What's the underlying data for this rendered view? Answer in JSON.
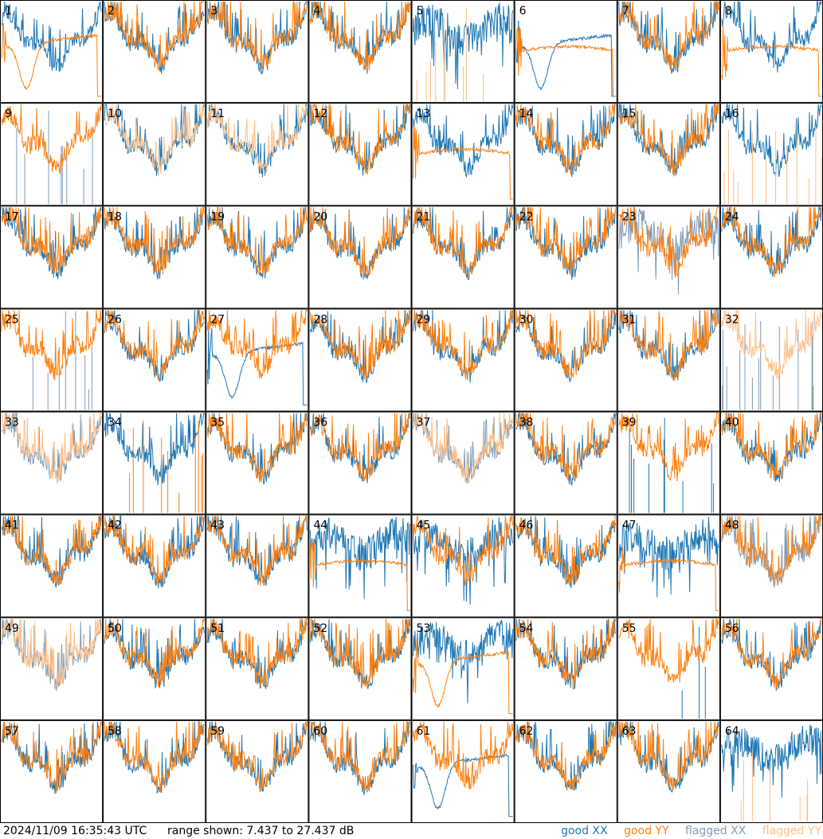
{
  "chart_data": {
    "type": "line",
    "layout": "8x8 small multiples, one panel per antenna",
    "panel_count": 64,
    "colors": {
      "good_xx": "#1f77b4",
      "good_yy": "#ff7f0e",
      "flagged_xx": "#7f9bb8",
      "flagged_yy": "#ffbf87",
      "border": "#000000",
      "background": "#ffffff"
    },
    "y_range_db": [
      7.437,
      27.437
    ],
    "panels": [
      {
        "id": 1,
        "label": "1",
        "xx": "good",
        "yy": "good",
        "xx_shape": "normal",
        "yy_shape": "dip"
      },
      {
        "id": 2,
        "label": "2",
        "xx": "good",
        "yy": "good",
        "xx_shape": "normal",
        "yy_shape": "normal"
      },
      {
        "id": 3,
        "label": "3",
        "xx": "good",
        "yy": "good",
        "xx_shape": "normal",
        "yy_shape": "normal"
      },
      {
        "id": 4,
        "label": "4",
        "xx": "good",
        "yy": "good",
        "xx_shape": "normal",
        "yy_shape": "normal"
      },
      {
        "id": 5,
        "label": "5",
        "xx": "good",
        "yy": "flagged",
        "xx_shape": "noisy",
        "yy_shape": "spikes"
      },
      {
        "id": 6,
        "label": "6",
        "xx": "good",
        "yy": "good",
        "xx_shape": "dip",
        "yy_shape": "flat"
      },
      {
        "id": 7,
        "label": "7",
        "xx": "good",
        "yy": "good",
        "xx_shape": "normal",
        "yy_shape": "normal"
      },
      {
        "id": 8,
        "label": "8",
        "xx": "good",
        "yy": "good",
        "xx_shape": "normal",
        "yy_shape": "flat"
      },
      {
        "id": 9,
        "label": "9",
        "xx": "flagged",
        "yy": "good",
        "xx_shape": "spikes",
        "yy_shape": "normal"
      },
      {
        "id": 10,
        "label": "10",
        "xx": "good",
        "yy": "flagged",
        "xx_shape": "normal",
        "yy_shape": "normal"
      },
      {
        "id": 11,
        "label": "11",
        "xx": "good",
        "yy": "flagged",
        "xx_shape": "normal",
        "yy_shape": "normal"
      },
      {
        "id": 12,
        "label": "12",
        "xx": "good",
        "yy": "good",
        "xx_shape": "normal",
        "yy_shape": "normal"
      },
      {
        "id": 13,
        "label": "13",
        "xx": "good",
        "yy": "good",
        "xx_shape": "normal",
        "yy_shape": "flat"
      },
      {
        "id": 14,
        "label": "14",
        "xx": "good",
        "yy": "good",
        "xx_shape": "normal",
        "yy_shape": "normal"
      },
      {
        "id": 15,
        "label": "15",
        "xx": "good",
        "yy": "good",
        "xx_shape": "normal",
        "yy_shape": "normal"
      },
      {
        "id": 16,
        "label": "16",
        "xx": "good",
        "yy": "flagged",
        "xx_shape": "normal",
        "yy_shape": "spikes"
      },
      {
        "id": 17,
        "label": "17",
        "xx": "good",
        "yy": "good",
        "xx_shape": "normal",
        "yy_shape": "normal"
      },
      {
        "id": 18,
        "label": "18",
        "xx": "good",
        "yy": "good",
        "xx_shape": "normal",
        "yy_shape": "normal"
      },
      {
        "id": 19,
        "label": "19",
        "xx": "good",
        "yy": "good",
        "xx_shape": "normal",
        "yy_shape": "normal"
      },
      {
        "id": 20,
        "label": "20",
        "xx": "good",
        "yy": "good",
        "xx_shape": "normal",
        "yy_shape": "normal"
      },
      {
        "id": 21,
        "label": "21",
        "xx": "good",
        "yy": "good",
        "xx_shape": "normal",
        "yy_shape": "normal"
      },
      {
        "id": 22,
        "label": "22",
        "xx": "good",
        "yy": "good",
        "xx_shape": "normal",
        "yy_shape": "normal"
      },
      {
        "id": 23,
        "label": "23",
        "xx": "flagged",
        "yy": "good",
        "xx_shape": "noisy",
        "yy_shape": "normal"
      },
      {
        "id": 24,
        "label": "24",
        "xx": "good",
        "yy": "good",
        "xx_shape": "normal",
        "yy_shape": "normal"
      },
      {
        "id": 25,
        "label": "25",
        "xx": "flagged",
        "yy": "good",
        "xx_shape": "spikes",
        "yy_shape": "normal"
      },
      {
        "id": 26,
        "label": "26",
        "xx": "good",
        "yy": "good",
        "xx_shape": "normal",
        "yy_shape": "normal"
      },
      {
        "id": 27,
        "label": "27",
        "xx": "good",
        "yy": "good",
        "xx_shape": "dip",
        "yy_shape": "normal"
      },
      {
        "id": 28,
        "label": "28",
        "xx": "good",
        "yy": "good",
        "xx_shape": "normal",
        "yy_shape": "normal"
      },
      {
        "id": 29,
        "label": "29",
        "xx": "good",
        "yy": "good",
        "xx_shape": "normal",
        "yy_shape": "normal"
      },
      {
        "id": 30,
        "label": "30",
        "xx": "good",
        "yy": "good",
        "xx_shape": "normal",
        "yy_shape": "normal"
      },
      {
        "id": 31,
        "label": "31",
        "xx": "good",
        "yy": "good",
        "xx_shape": "normal",
        "yy_shape": "normal"
      },
      {
        "id": 32,
        "label": "32",
        "xx": "flagged",
        "yy": "flagged",
        "xx_shape": "spikes",
        "yy_shape": "normal"
      },
      {
        "id": 33,
        "label": "33",
        "xx": "flagged",
        "yy": "flagged",
        "xx_shape": "normal",
        "yy_shape": "normal"
      },
      {
        "id": 34,
        "label": "34",
        "xx": "good",
        "yy": "good",
        "xx_shape": "normal",
        "yy_shape": "spikes"
      },
      {
        "id": 35,
        "label": "35",
        "xx": "good",
        "yy": "good",
        "xx_shape": "normal",
        "yy_shape": "normal"
      },
      {
        "id": 36,
        "label": "36",
        "xx": "good",
        "yy": "good",
        "xx_shape": "normal",
        "yy_shape": "normal"
      },
      {
        "id": 37,
        "label": "37",
        "xx": "flagged",
        "yy": "flagged",
        "xx_shape": "normal",
        "yy_shape": "normal"
      },
      {
        "id": 38,
        "label": "38",
        "xx": "good",
        "yy": "good",
        "xx_shape": "normal",
        "yy_shape": "normal"
      },
      {
        "id": 39,
        "label": "39",
        "xx": "good",
        "yy": "good",
        "xx_shape": "spikes",
        "yy_shape": "normal"
      },
      {
        "id": 40,
        "label": "40",
        "xx": "good",
        "yy": "good",
        "xx_shape": "normal",
        "yy_shape": "normal"
      },
      {
        "id": 41,
        "label": "41",
        "xx": "good",
        "yy": "good",
        "xx_shape": "normal",
        "yy_shape": "normal"
      },
      {
        "id": 42,
        "label": "42",
        "xx": "good",
        "yy": "good",
        "xx_shape": "normal",
        "yy_shape": "normal"
      },
      {
        "id": 43,
        "label": "43",
        "xx": "good",
        "yy": "good",
        "xx_shape": "normal",
        "yy_shape": "normal"
      },
      {
        "id": 44,
        "label": "44",
        "xx": "good",
        "yy": "good",
        "xx_shape": "noisy",
        "yy_shape": "flat"
      },
      {
        "id": 45,
        "label": "45",
        "xx": "good",
        "yy": "good",
        "xx_shape": "noisy",
        "yy_shape": "normal"
      },
      {
        "id": 46,
        "label": "46",
        "xx": "good",
        "yy": "good",
        "xx_shape": "normal",
        "yy_shape": "normal"
      },
      {
        "id": 47,
        "label": "47",
        "xx": "good",
        "yy": "good",
        "xx_shape": "noisy",
        "yy_shape": "flat"
      },
      {
        "id": 48,
        "label": "48",
        "xx": "flagged",
        "yy": "good",
        "xx_shape": "normal",
        "yy_shape": "normal"
      },
      {
        "id": 49,
        "label": "49",
        "xx": "flagged",
        "yy": "flagged",
        "xx_shape": "normal",
        "yy_shape": "normal"
      },
      {
        "id": 50,
        "label": "50",
        "xx": "good",
        "yy": "good",
        "xx_shape": "normal",
        "yy_shape": "normal"
      },
      {
        "id": 51,
        "label": "51",
        "xx": "good",
        "yy": "good",
        "xx_shape": "normal",
        "yy_shape": "normal"
      },
      {
        "id": 52,
        "label": "52",
        "xx": "good",
        "yy": "good",
        "xx_shape": "normal",
        "yy_shape": "normal"
      },
      {
        "id": 53,
        "label": "53",
        "xx": "good",
        "yy": "good",
        "xx_shape": "noisy",
        "yy_shape": "dip"
      },
      {
        "id": 54,
        "label": "54",
        "xx": "good",
        "yy": "good",
        "xx_shape": "normal",
        "yy_shape": "normal"
      },
      {
        "id": 55,
        "label": "55",
        "xx": "good",
        "yy": "good",
        "xx_shape": "spikes",
        "yy_shape": "normal"
      },
      {
        "id": 56,
        "label": "56",
        "xx": "good",
        "yy": "good",
        "xx_shape": "normal",
        "yy_shape": "normal"
      },
      {
        "id": 57,
        "label": "57",
        "xx": "good",
        "yy": "good",
        "xx_shape": "normal",
        "yy_shape": "normal"
      },
      {
        "id": 58,
        "label": "58",
        "xx": "good",
        "yy": "good",
        "xx_shape": "normal",
        "yy_shape": "normal"
      },
      {
        "id": 59,
        "label": "59",
        "xx": "good",
        "yy": "good",
        "xx_shape": "normal",
        "yy_shape": "normal"
      },
      {
        "id": 60,
        "label": "60",
        "xx": "good",
        "yy": "good",
        "xx_shape": "normal",
        "yy_shape": "normal"
      },
      {
        "id": 61,
        "label": "61",
        "xx": "good",
        "yy": "good",
        "xx_shape": "dip",
        "yy_shape": "normal"
      },
      {
        "id": 62,
        "label": "62",
        "xx": "good",
        "yy": "good",
        "xx_shape": "normal",
        "yy_shape": "normal"
      },
      {
        "id": 63,
        "label": "63",
        "xx": "good",
        "yy": "good",
        "xx_shape": "normal",
        "yy_shape": "normal"
      },
      {
        "id": 64,
        "label": "64",
        "xx": "good",
        "yy": "flagged",
        "xx_shape": "noisy",
        "yy_shape": "spikes"
      }
    ]
  },
  "footer": {
    "timestamp": "2024/11/09 16:35:43 UTC",
    "range": "range shown: 7.437 to 27.437 dB",
    "legend": {
      "good_xx": "good XX",
      "good_yy": "good YY",
      "flagged_xx": "flagged XX",
      "flagged_yy": "flagged YY"
    }
  }
}
